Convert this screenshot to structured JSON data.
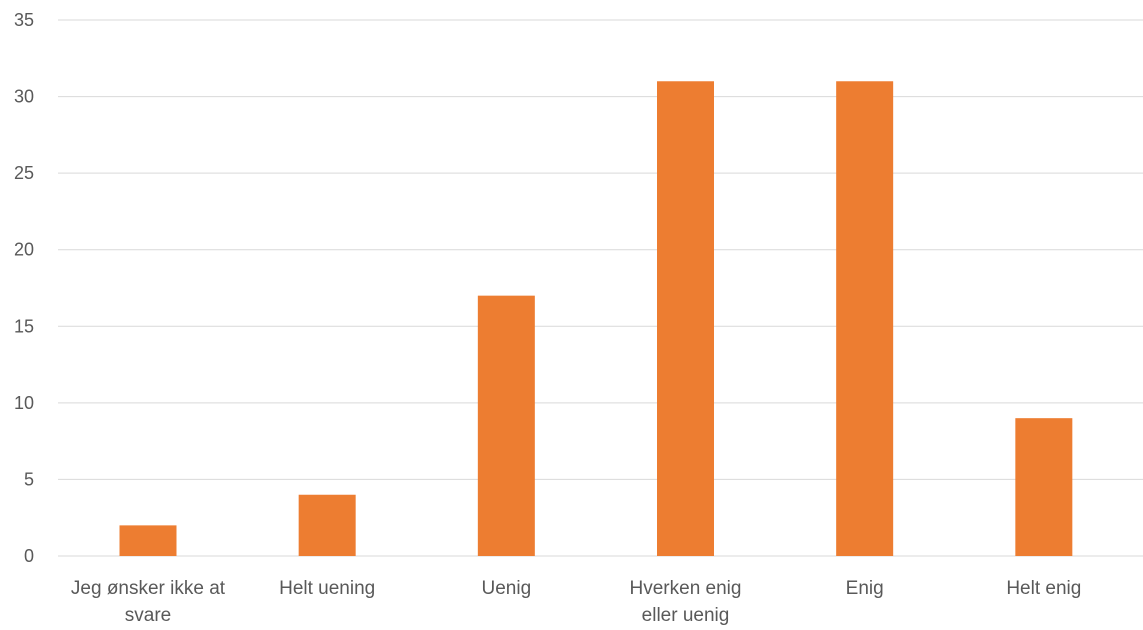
{
  "chart_data": {
    "type": "bar",
    "title": "",
    "xlabel": "",
    "ylabel": "",
    "categories": [
      [
        "Jeg ønsker ikke at",
        "svare"
      ],
      [
        "Helt uening"
      ],
      [
        "Uenig"
      ],
      [
        "Hverken enig",
        "eller uenig"
      ],
      [
        "Enig"
      ],
      [
        "Helt enig"
      ]
    ],
    "values": [
      2,
      4,
      17,
      31,
      31,
      9
    ],
    "ylim": [
      0,
      35
    ],
    "yticks": [
      "0",
      "5",
      "10",
      "15",
      "20",
      "25",
      "30",
      "35"
    ],
    "grid": true,
    "legend": "none",
    "bar_color": "#ED7D31"
  }
}
